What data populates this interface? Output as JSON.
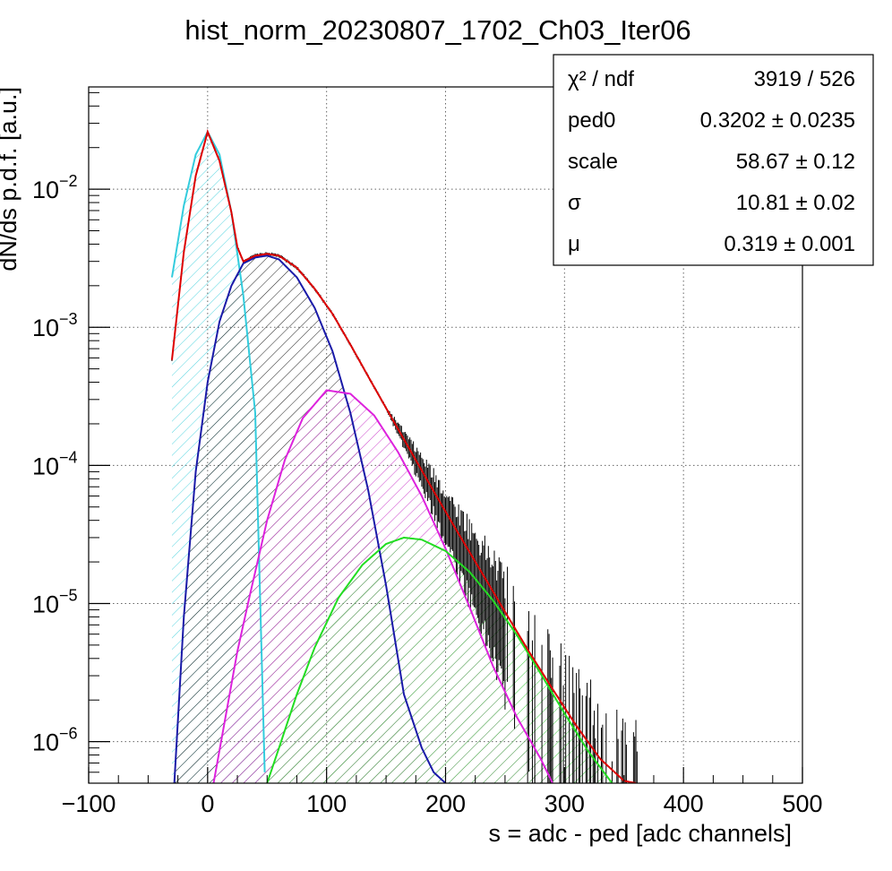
{
  "chart_data": {
    "type": "line",
    "title": "hist_norm_20230807_1702_Ch03_Iter06",
    "xlabel": "s = adc - ped [adc channels]",
    "ylabel": "dN/ds p.d.f. [a.u.]",
    "xlim": [
      -100,
      500
    ],
    "ylim": [
      5e-07,
      0.055
    ],
    "y_scale": "log",
    "grid": true,
    "x_ticks": [
      {
        "value": -100,
        "label": "−100"
      },
      {
        "value": 0,
        "label": "0"
      },
      {
        "value": 100,
        "label": "100"
      },
      {
        "value": 200,
        "label": "200"
      },
      {
        "value": 300,
        "label": "300"
      },
      {
        "value": 400,
        "label": "400"
      },
      {
        "value": 500,
        "label": "500"
      }
    ],
    "y_ticks": [
      {
        "value": 1e-06,
        "base": "10",
        "exp": "−6"
      },
      {
        "value": 1e-05,
        "base": "10",
        "exp": "−5"
      },
      {
        "value": 0.0001,
        "base": "10",
        "exp": "−4"
      },
      {
        "value": 0.001,
        "base": "10",
        "exp": "−3"
      },
      {
        "value": 0.01,
        "base": "10",
        "exp": "−2"
      }
    ],
    "components": [
      {
        "color": "#33ccdd",
        "hatch_color": "#55d5e0",
        "x": [
          -30,
          -20,
          -10,
          0,
          10,
          20,
          30,
          40,
          48
        ],
        "y": [
          0.0023,
          0.0076,
          0.0178,
          0.026,
          0.0178,
          0.0068,
          0.0017,
          0.00024,
          6e-07
        ]
      },
      {
        "color": "#1a1aa8",
        "hatch_color": "#202020",
        "x": [
          -28,
          -20,
          -10,
          0,
          10,
          20,
          30,
          40,
          50,
          60,
          75,
          90,
          105,
          120,
          135,
          150,
          165,
          180,
          190,
          200
        ],
        "y": [
          5e-07,
          8e-06,
          9e-05,
          0.0004,
          0.0011,
          0.002,
          0.0029,
          0.0032,
          0.0033,
          0.0031,
          0.0023,
          0.00138,
          0.00067,
          0.00024,
          6.6e-05,
          1.35e-05,
          2.2e-06,
          9e-07,
          6e-07,
          5e-07
        ]
      },
      {
        "color": "#dd22dd",
        "hatch_color": "#cc44cc",
        "x": [
          5,
          15,
          25,
          35,
          50,
          65,
          80,
          100,
          120,
          140,
          160,
          180,
          200,
          220,
          240,
          260,
          280,
          290
        ],
        "y": [
          5e-07,
          1.5e-06,
          4.5e-06,
          1.1e-05,
          4e-05,
          0.00011,
          0.00022,
          0.00035,
          0.00033,
          0.00023,
          0.000125,
          6e-05,
          2.5e-05,
          9.5e-06,
          3.5e-06,
          1.5e-06,
          7.5e-07,
          5e-07
        ]
      },
      {
        "color": "#22dd22",
        "hatch_color": "#44cc44",
        "x": [
          50,
          60,
          75,
          90,
          110,
          130,
          150,
          165,
          180,
          200,
          220,
          240,
          260,
          280,
          300,
          320,
          340
        ],
        "y": [
          5e-07,
          9e-07,
          2.2e-06,
          4.8e-06,
          1.1e-05,
          1.9e-05,
          2.7e-05,
          3e-05,
          2.9e-05,
          2.4e-05,
          1.7e-05,
          1.05e-05,
          5.9e-06,
          3.1e-06,
          1.6e-06,
          8.5e-07,
          5e-07
        ]
      }
    ],
    "fit": {
      "color": "#dd0000",
      "x": [
        -30,
        -20,
        -10,
        0,
        10,
        20,
        25,
        30,
        40,
        50,
        60,
        75,
        90,
        105,
        120,
        135,
        150,
        170,
        190,
        210,
        230,
        250,
        270,
        290,
        310,
        330,
        350,
        360
      ],
      "y": [
        0.00058,
        0.0035,
        0.0125,
        0.026,
        0.016,
        0.0068,
        0.0038,
        0.003,
        0.0033,
        0.0034,
        0.0033,
        0.0027,
        0.0019,
        0.00125,
        0.00075,
        0.00044,
        0.00026,
        0.00013,
        6.5e-05,
        3.3e-05,
        1.7e-05,
        8.7e-06,
        4.5e-06,
        2.4e-06,
        1.3e-06,
        7.5e-07,
        5.2e-07,
        5e-07
      ]
    },
    "stats": [
      {
        "label": "χ² / ndf",
        "value": "3919 / 526"
      },
      {
        "label": "ped0",
        "value": "0.3202 ± 0.0235"
      },
      {
        "label": "scale",
        "value": "58.67 ± 0.12"
      },
      {
        "label": "σ",
        "value": "10.81 ± 0.02"
      },
      {
        "label": "μ",
        "value": "0.319 ± 0.001"
      }
    ]
  }
}
